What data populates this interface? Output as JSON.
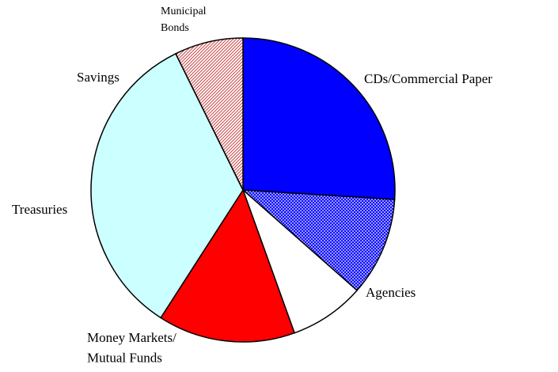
{
  "chart_data": {
    "type": "pie",
    "categories": [
      "CDs/Commercial Paper",
      "Agencies",
      null,
      "Money Markets/\nMutual Funds",
      "Treasuries",
      "Savings",
      "Municipal\nBonds"
    ],
    "values": [
      26,
      10.5,
      8,
      14.6,
      33.6,
      0,
      7.3
    ],
    "colors": [
      "#0000ff",
      "#3333ff",
      "#ffffff",
      "#ff0000",
      "#ccffff",
      "#ccffff",
      "#ff9999"
    ],
    "hatch": [
      null,
      "dots",
      null,
      null,
      null,
      null,
      "diagonal"
    ]
  }
}
